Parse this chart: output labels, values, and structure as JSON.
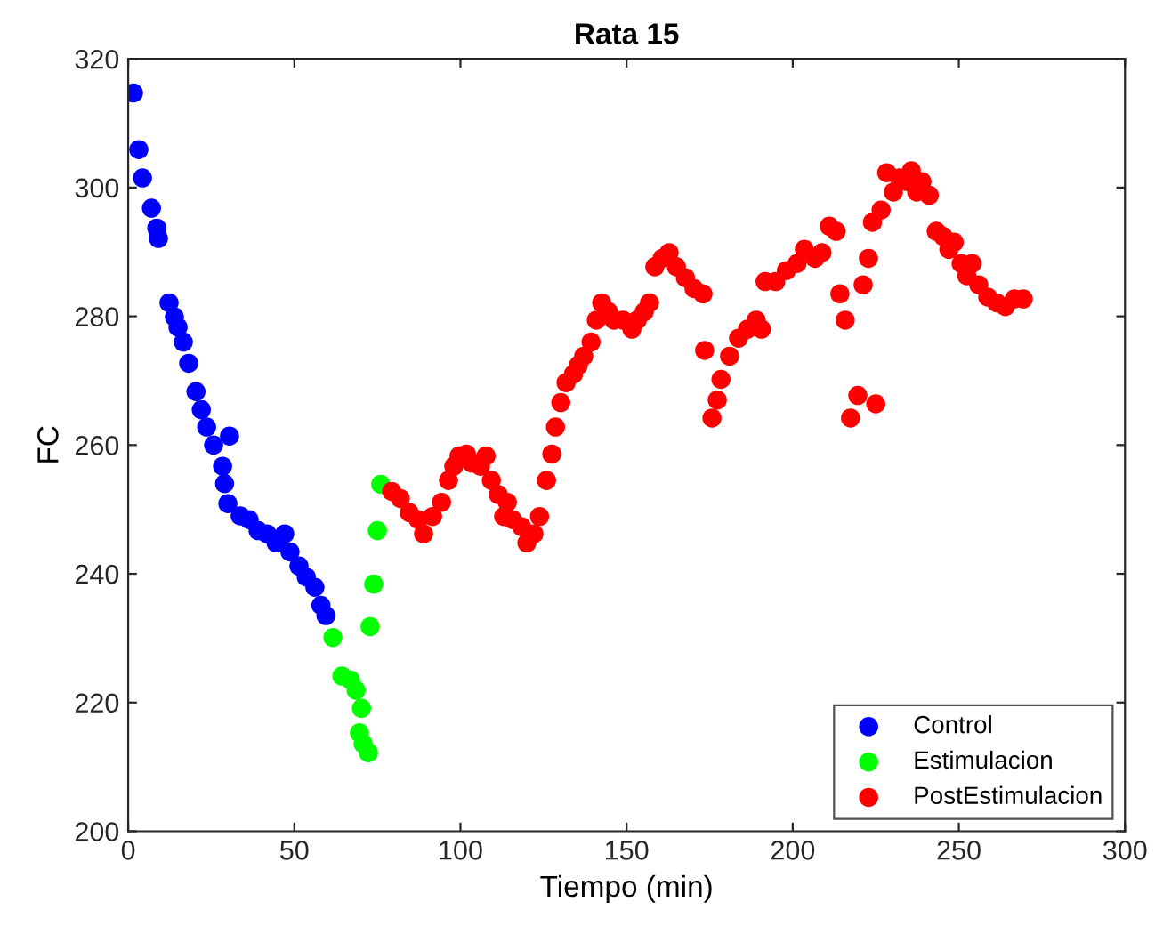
{
  "chart_data": {
    "type": "scatter",
    "title": "Rata 15",
    "xlabel": "Tiempo (min)",
    "ylabel": "FC",
    "xlim": [
      0,
      300
    ],
    "xticks": [
      0,
      50,
      100,
      150,
      200,
      250,
      300
    ],
    "ylim": [
      200,
      320
    ],
    "yticks": [
      200,
      220,
      240,
      260,
      280,
      300,
      320
    ],
    "grid": false,
    "legend": "bottom right",
    "marker": "circle",
    "series": [
      {
        "name": "Control",
        "color": "#0000ff",
        "x": [
          1.6,
          3.2,
          4.3,
          7,
          8.6,
          9.1,
          12.3,
          13.9,
          15,
          16.6,
          18.2,
          20.4,
          22,
          23.6,
          25.7,
          30.5,
          28.4,
          29,
          30,
          33.7,
          36.4,
          39.1,
          41.8,
          44.5,
          47.1,
          48.7,
          51.4,
          53.6,
          56.2,
          58,
          59.5
        ],
        "values": [
          314.7,
          305.9,
          301.5,
          296.8,
          293.7,
          292.1,
          282.1,
          279.9,
          278.3,
          276,
          272.7,
          268.3,
          265.5,
          262.8,
          260,
          261.4,
          256.7,
          254,
          250.9,
          249,
          248.4,
          246.7,
          246.2,
          244.8,
          246.2,
          243.4,
          241.2,
          239.5,
          237.9,
          235.1,
          233.5
        ]
      },
      {
        "name": "Estimulacion",
        "color": "#00ff00",
        "x": [
          61.6,
          64.3,
          66.9,
          68.6,
          70.2,
          69.6,
          70.7,
          72.3,
          72.8,
          73.9,
          75,
          76
        ],
        "values": [
          230.1,
          224.1,
          223.5,
          221.9,
          219.1,
          215.3,
          213.6,
          212.2,
          231.8,
          238.4,
          246.7,
          253.9
        ]
      },
      {
        "name": "PostEstimulacion",
        "color": "#ff0000",
        "x": [
          79.3,
          81.9,
          84.6,
          87.3,
          88.9,
          91.6,
          94.3,
          96.4,
          98,
          99.6,
          101.8,
          103.4,
          106,
          107.7,
          109.3,
          111.4,
          113,
          114.1,
          115.7,
          118.4,
          120,
          122.1,
          123.8,
          125.9,
          127.5,
          128.6,
          130.2,
          131.8,
          134,
          135.5,
          137.1,
          139.3,
          140.9,
          142.5,
          144.6,
          146.2,
          148.9,
          151.6,
          153.2,
          155.3,
          156.9,
          158.5,
          160.7,
          162.8,
          165,
          167.7,
          170.3,
          173,
          173.5,
          175.7,
          177.3,
          178.4,
          181,
          183.7,
          186.4,
          189,
          190.6,
          191.7,
          194.9,
          198.1,
          201.3,
          203.5,
          206.7,
          208.8,
          211,
          213.1,
          214.2,
          215.8,
          217.4,
          219.6,
          221.2,
          222.8,
          225,
          224,
          226.6,
          228.3,
          230.3,
          232,
          234.6,
          235.7,
          237.3,
          238.9,
          241.1,
          243.2,
          245.3,
          247,
          248.6,
          250.7,
          252.4,
          254,
          256,
          258.7,
          261.4,
          264,
          266.7,
          269.4
        ],
        "values": [
          252.8,
          251.7,
          249.5,
          248.4,
          246.2,
          248.9,
          251.1,
          254.5,
          256.7,
          258.3,
          258.6,
          257.2,
          256.7,
          258.3,
          254.5,
          252.3,
          248.9,
          251.1,
          248.4,
          247.3,
          244.8,
          246.2,
          248.9,
          254.5,
          258.6,
          262.8,
          266.6,
          269.7,
          271,
          272.4,
          273.8,
          276,
          279.4,
          282.1,
          280.7,
          279.4,
          279.4,
          278,
          279.4,
          280.7,
          282.1,
          287.7,
          289,
          289.9,
          287.7,
          286,
          284.3,
          283.5,
          274.7,
          264.2,
          267,
          270.2,
          273.8,
          276.6,
          278,
          279.4,
          278,
          285.4,
          285.4,
          287.1,
          288.2,
          290.4,
          289,
          289.9,
          294,
          293.2,
          283.5,
          279.4,
          264.2,
          267.7,
          284.9,
          289,
          266.4,
          294.6,
          296.5,
          302.3,
          299.3,
          301.5,
          300.9,
          302.6,
          299.3,
          300.9,
          298.8,
          293.2,
          292.4,
          290.4,
          291.5,
          288.2,
          286.3,
          288.2,
          284.9,
          283,
          282.1,
          281.5,
          282.7,
          282.7
        ]
      }
    ]
  }
}
